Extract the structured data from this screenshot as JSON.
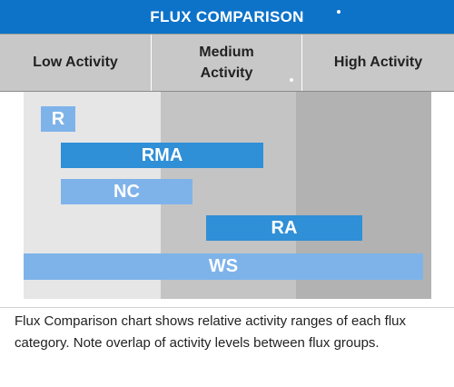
{
  "title": "FLUX COMPARISON",
  "columns": [
    {
      "label": "Low Activity"
    },
    {
      "label_line1": "Medium",
      "label_line2": "Activity"
    },
    {
      "label": "High Activity"
    }
  ],
  "bars": [
    {
      "label": "R",
      "color": "#7eb3ea"
    },
    {
      "label": "RMA",
      "color": "#2f8fd7"
    },
    {
      "label": "NC",
      "color": "#7eb3ea"
    },
    {
      "label": "RA",
      "color": "#2f8fd7"
    },
    {
      "label": "WS",
      "color": "#7eb3ea"
    }
  ],
  "zone_colors": {
    "low": "#e6e6e6",
    "medium": "#c4c4c4",
    "high": "#b2b2b2"
  },
  "caption": "Flux Comparison chart shows relative activity ranges of each flux category. Note overlap of activity levels between flux groups."
}
